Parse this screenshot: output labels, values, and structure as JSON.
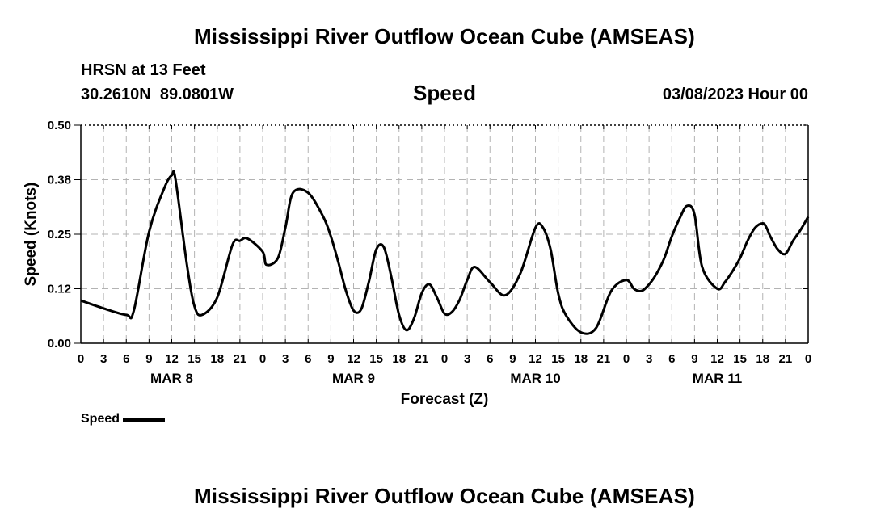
{
  "header": {
    "title": "Mississippi River Outflow Ocean Cube (AMSEAS)",
    "station": "HRSN at 13 Feet",
    "coords": "30.2610N  89.0801W",
    "variable": "Speed",
    "datetime": "03/08/2023 Hour 00"
  },
  "footer": {
    "title": "Mississippi River Outflow Ocean Cube (AMSEAS)"
  },
  "legend": {
    "label": "Speed"
  },
  "colors": {
    "line": "#000000",
    "grid": "#b3b3b3"
  },
  "chart_data": {
    "type": "line",
    "title": "Speed",
    "xlabel": "Forecast (Z)",
    "ylabel": "Speed (Knots)",
    "xlim": [
      0,
      96
    ],
    "ylim": [
      0,
      0.5
    ],
    "grid": true,
    "y_ticks": [
      "0.00",
      "0.12",
      "0.25",
      "0.38",
      "0.50"
    ],
    "x_tick_labels": [
      "0",
      "3",
      "6",
      "9",
      "12",
      "15",
      "18",
      "21",
      "0",
      "3",
      "6",
      "9",
      "12",
      "15",
      "18",
      "21",
      "0",
      "3",
      "6",
      "9",
      "12",
      "15",
      "18",
      "21",
      "0",
      "3",
      "6",
      "9",
      "12",
      "15",
      "18",
      "21",
      "0"
    ],
    "day_labels": [
      {
        "hour": 12,
        "label": "MAR 8"
      },
      {
        "hour": 36,
        "label": "MAR 9"
      },
      {
        "hour": 60,
        "label": "MAR 10"
      },
      {
        "hour": 84,
        "label": "MAR 11"
      }
    ],
    "series": [
      {
        "name": "Speed",
        "x": [
          0,
          3,
          6,
          7,
          9,
          11,
          12,
          12.5,
          14,
          15,
          16,
          18,
          20,
          21,
          22,
          24,
          24.5,
          26,
          27,
          28,
          30,
          32,
          33,
          34,
          35,
          36,
          37,
          38,
          39,
          40,
          41,
          42,
          43,
          44,
          45,
          46,
          47,
          48,
          49,
          50,
          51,
          52,
          54,
          56,
          58,
          60,
          61,
          62,
          63,
          64,
          66,
          68,
          70,
          72,
          73,
          74,
          75,
          76,
          77,
          78,
          79,
          80,
          81,
          82,
          84,
          85,
          86,
          87,
          88,
          89,
          90,
          90.5,
          91,
          92,
          93,
          94,
          95,
          96
        ],
        "values": [
          0.098,
          0.08,
          0.065,
          0.075,
          0.255,
          0.355,
          0.385,
          0.375,
          0.18,
          0.085,
          0.065,
          0.105,
          0.225,
          0.235,
          0.24,
          0.21,
          0.18,
          0.195,
          0.265,
          0.345,
          0.345,
          0.29,
          0.245,
          0.185,
          0.12,
          0.075,
          0.078,
          0.14,
          0.215,
          0.22,
          0.15,
          0.065,
          0.03,
          0.058,
          0.115,
          0.135,
          0.105,
          0.068,
          0.072,
          0.1,
          0.145,
          0.175,
          0.14,
          0.11,
          0.16,
          0.265,
          0.265,
          0.215,
          0.115,
          0.065,
          0.025,
          0.035,
          0.12,
          0.145,
          0.125,
          0.12,
          0.135,
          0.16,
          0.195,
          0.245,
          0.285,
          0.315,
          0.295,
          0.175,
          0.125,
          0.14,
          0.165,
          0.195,
          0.235,
          0.265,
          0.275,
          0.265,
          0.245,
          0.215,
          0.205,
          0.235,
          0.26,
          0.29
        ]
      }
    ]
  }
}
